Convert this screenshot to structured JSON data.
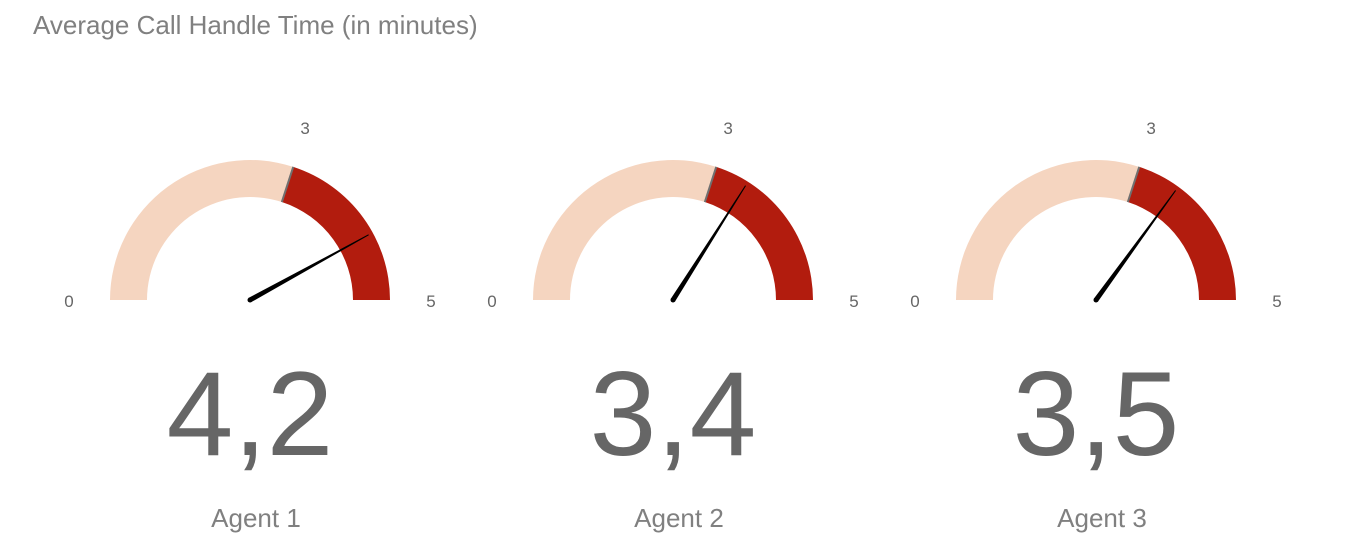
{
  "chart_data": {
    "type": "gauge",
    "title": "Average Call Handle Time (in minutes)",
    "min": 0,
    "max": 5,
    "threshold": 3,
    "tick_labels": {
      "min": "0",
      "threshold": "3",
      "max": "5"
    },
    "colors": {
      "normal_band": "#F5D5C0",
      "alert_band": "#B21C0E",
      "threshold_marker": "#707070",
      "needle": "#000000",
      "value_text": "#666666",
      "label_text": "#808080"
    },
    "gauges": [
      {
        "name": "Agent 1",
        "value": 4.2,
        "value_label": "4,2"
      },
      {
        "name": "Agent 2",
        "value": 3.4,
        "value_label": "3,4"
      },
      {
        "name": "Agent 3",
        "value": 3.5,
        "value_label": "3,5"
      }
    ]
  }
}
